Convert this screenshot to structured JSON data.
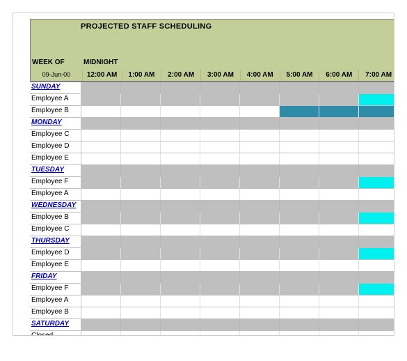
{
  "title": "PROJECTED STAFF SCHEDULING",
  "weekof_label": "WEEK OF",
  "midnight_label": "MIDNIGHT",
  "weekof_date": "09-Jun-00",
  "time_columns": [
    "12:00 AM",
    "1:00 AM",
    "2:00 AM",
    "3:00 AM",
    "4:00 AM",
    "5:00 AM",
    "6:00 AM",
    "7:00 AM"
  ],
  "colors": {
    "header_bg": "#c3ce98",
    "day_link": "#0000d0",
    "gray_fill": "#bfbfbf",
    "cyan_fill": "#00f0f0",
    "teal_fill": "#2f8ca8",
    "grid_border": "#c0c0c0"
  },
  "rows": [
    {
      "type": "day",
      "label": "SUNDAY",
      "fills": [
        "",
        "",
        "",
        "",
        "",
        "",
        "",
        ""
      ]
    },
    {
      "type": "emp",
      "label": "Employee A",
      "fills": [
        "gray",
        "gray",
        "gray",
        "gray",
        "gray",
        "gray",
        "gray",
        "cyan"
      ]
    },
    {
      "type": "emp",
      "label": "Employee B",
      "fills": [
        "",
        "",
        "",
        "",
        "",
        "teal",
        "teal",
        "teal"
      ]
    },
    {
      "type": "day",
      "label": "MONDAY",
      "fills": [
        "",
        "",
        "",
        "",
        "",
        "",
        "",
        ""
      ]
    },
    {
      "type": "emp",
      "label": "Employee C",
      "fills": [
        "",
        "",
        "",
        "",
        "",
        "",
        "",
        ""
      ]
    },
    {
      "type": "emp",
      "label": "Employee D",
      "fills": [
        "",
        "",
        "",
        "",
        "",
        "",
        "",
        ""
      ]
    },
    {
      "type": "emp",
      "label": "Employee E",
      "fills": [
        "",
        "",
        "",
        "",
        "",
        "",
        "",
        ""
      ]
    },
    {
      "type": "day",
      "label": "TUESDAY",
      "fills": [
        "",
        "",
        "",
        "",
        "",
        "",
        "",
        ""
      ]
    },
    {
      "type": "emp",
      "label": "Employee F",
      "fills": [
        "gray",
        "gray",
        "gray",
        "gray",
        "gray",
        "gray",
        "gray",
        "cyan"
      ]
    },
    {
      "type": "emp",
      "label": "Employee A",
      "fills": [
        "",
        "",
        "",
        "",
        "",
        "",
        "",
        ""
      ]
    },
    {
      "type": "day",
      "label": "WEDNESDAY",
      "fills": [
        "",
        "",
        "",
        "",
        "",
        "",
        "",
        ""
      ]
    },
    {
      "type": "emp",
      "label": "Employee B",
      "fills": [
        "gray",
        "gray",
        "gray",
        "gray",
        "gray",
        "gray",
        "gray",
        "cyan"
      ]
    },
    {
      "type": "emp",
      "label": "Employee C",
      "fills": [
        "",
        "",
        "",
        "",
        "",
        "",
        "",
        ""
      ]
    },
    {
      "type": "day",
      "label": "THURSDAY",
      "fills": [
        "",
        "",
        "",
        "",
        "",
        "",
        "",
        ""
      ]
    },
    {
      "type": "emp",
      "label": "Employee D",
      "fills": [
        "gray",
        "gray",
        "gray",
        "gray",
        "gray",
        "gray",
        "gray",
        "cyan"
      ]
    },
    {
      "type": "emp",
      "label": "Employee E",
      "fills": [
        "",
        "",
        "",
        "",
        "",
        "",
        "",
        ""
      ]
    },
    {
      "type": "day",
      "label": "FRIDAY",
      "fills": [
        "",
        "",
        "",
        "",
        "",
        "",
        "",
        ""
      ]
    },
    {
      "type": "emp",
      "label": "Employee F",
      "fills": [
        "gray",
        "gray",
        "gray",
        "gray",
        "gray",
        "gray",
        "gray",
        "cyan"
      ]
    },
    {
      "type": "emp",
      "label": "Employee A",
      "fills": [
        "",
        "",
        "",
        "",
        "",
        "",
        "",
        ""
      ]
    },
    {
      "type": "emp",
      "label": "Employee B",
      "fills": [
        "",
        "",
        "",
        "",
        "",
        "",
        "",
        ""
      ]
    },
    {
      "type": "day",
      "label": "SATURDAY",
      "fills": [
        "",
        "",
        "",
        "",
        "",
        "",
        "",
        ""
      ]
    },
    {
      "type": "emp",
      "label": "Closed",
      "fills": [
        "",
        "",
        "",
        "",
        "",
        "",
        "",
        ""
      ]
    }
  ]
}
